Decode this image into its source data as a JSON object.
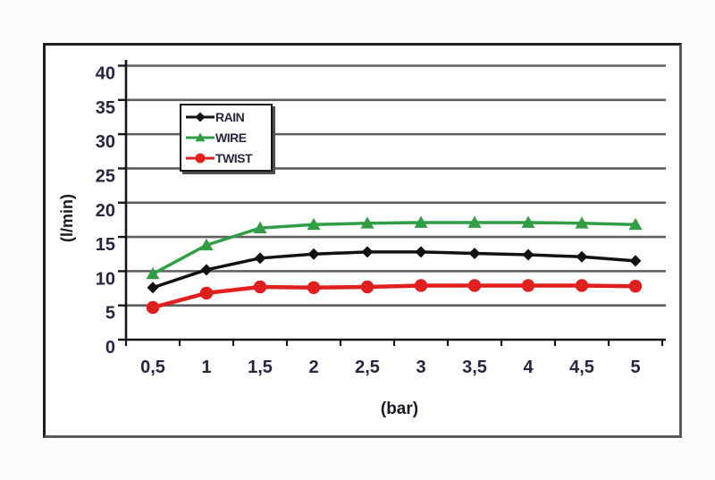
{
  "page": {
    "background": "#fcfbfa",
    "frame_border_color": "#1f1f1f"
  },
  "chart_data": {
    "type": "line",
    "title": "",
    "xlabel": "(bar)",
    "ylabel": "(l/min)",
    "categories": [
      "0,5",
      "1",
      "1,5",
      "2",
      "2,5",
      "3",
      "3,5",
      "4",
      "4,5",
      "5"
    ],
    "series": [
      {
        "name": "RAIN",
        "color": "#121212",
        "marker": "diamond",
        "line_width": 3.5,
        "values": [
          7.6,
          10.2,
          11.9,
          12.5,
          12.8,
          12.8,
          12.6,
          12.4,
          12.1,
          11.5
        ]
      },
      {
        "name": "WIRE",
        "color": "#2f9e44",
        "marker": "triangle",
        "line_width": 3.5,
        "values": [
          9.6,
          13.8,
          16.3,
          16.8,
          17.0,
          17.1,
          17.1,
          17.1,
          17.0,
          16.8
        ]
      },
      {
        "name": "TWIST",
        "color": "#e01f1f",
        "marker": "circle",
        "line_width": 4.5,
        "values": [
          4.7,
          6.8,
          7.7,
          7.6,
          7.7,
          7.9,
          7.9,
          7.9,
          7.9,
          7.8
        ]
      }
    ],
    "ylim": [
      0,
      40
    ],
    "ytick_step": 5,
    "grid": true,
    "grid_color": "#5f5f5f",
    "axis_color": "#161616",
    "tick_label_color": "#262640",
    "legend_position": "inside-upper-left"
  }
}
